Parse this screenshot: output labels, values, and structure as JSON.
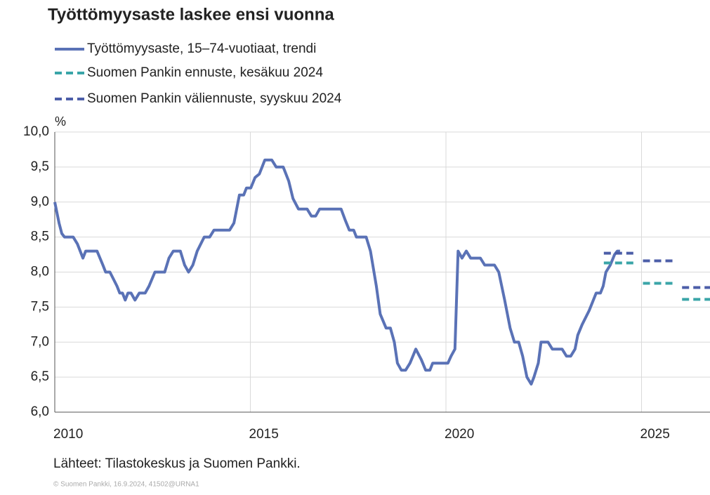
{
  "chart_data": {
    "type": "line",
    "title": "Työttömyysaste laskee ensi vuonna",
    "y_unit": "%",
    "source": "Lähteet: Tilastokeskus ja Suomen Pankki.",
    "footer": "© Suomen Pankki, 16.9.2024, 41502@URNA1",
    "xlim": [
      2010,
      2026.75
    ],
    "xticks": [
      2010,
      2015,
      2020,
      2025
    ],
    "ylim": [
      6,
      10
    ],
    "yticks": [
      {
        "value": 6,
        "label": "6,0"
      },
      {
        "value": 6.5,
        "label": "6,5"
      },
      {
        "value": 7,
        "label": "7,0"
      },
      {
        "value": 7.5,
        "label": "7,5"
      },
      {
        "value": 8,
        "label": "8,0"
      },
      {
        "value": 8.5,
        "label": "8,5"
      },
      {
        "value": 9,
        "label": "9,0"
      },
      {
        "value": 9.5,
        "label": "9,5"
      },
      {
        "value": 10,
        "label": "10,0"
      }
    ],
    "grid": true,
    "series": [
      {
        "name": "Työttömyysaste, 15–74-vuotiaat, trendi",
        "color": "#5a72b6",
        "style": "solid",
        "x": [
          2010.0,
          2010.11,
          2010.18,
          2010.25,
          2010.47,
          2010.58,
          2010.72,
          2010.79,
          2011.08,
          2011.23,
          2011.3,
          2011.41,
          2011.59,
          2011.66,
          2011.73,
          2011.8,
          2011.87,
          2011.95,
          2012.05,
          2012.16,
          2012.31,
          2012.41,
          2012.56,
          2012.81,
          2012.92,
          2013.03,
          2013.21,
          2013.32,
          2013.42,
          2013.53,
          2013.64,
          2013.82,
          2013.96,
          2014.07,
          2014.47,
          2014.58,
          2014.72,
          2014.83,
          2014.9,
          2015.01,
          2015.12,
          2015.23,
          2015.3,
          2015.37,
          2015.55,
          2015.66,
          2015.84,
          2015.98,
          2016.09,
          2016.23,
          2016.45,
          2016.56,
          2016.67,
          2016.77,
          2017.32,
          2017.42,
          2017.53,
          2017.64,
          2017.71,
          2017.96,
          2018.07,
          2018.22,
          2018.32,
          2018.47,
          2018.58,
          2018.68,
          2018.76,
          2018.86,
          2018.97,
          2019.08,
          2019.23,
          2019.37,
          2019.48,
          2019.59,
          2019.66,
          2020.05,
          2020.13,
          2020.23,
          2020.31,
          2020.41,
          2020.52,
          2020.63,
          2020.88,
          2020.99,
          2021.24,
          2021.35,
          2021.5,
          2021.64,
          2021.75,
          2021.86,
          2021.96,
          2022.07,
          2022.18,
          2022.25,
          2022.36,
          2022.43,
          2022.61,
          2022.72,
          2022.97,
          2023.08,
          2023.19,
          2023.3,
          2023.37,
          2023.48,
          2023.66,
          2023.84,
          2023.95,
          2024.02,
          2024.09,
          2024.2,
          2024.31,
          2024.38,
          2024.45
        ],
        "values": [
          9.0,
          8.7,
          8.55,
          8.5,
          8.5,
          8.4,
          8.2,
          8.3,
          8.3,
          8.1,
          8.0,
          8.0,
          7.8,
          7.7,
          7.7,
          7.6,
          7.7,
          7.7,
          7.6,
          7.7,
          7.7,
          7.8,
          8.0,
          8.0,
          8.2,
          8.3,
          8.3,
          8.1,
          8.0,
          8.1,
          8.3,
          8.5,
          8.5,
          8.6,
          8.6,
          8.7,
          9.1,
          9.1,
          9.2,
          9.2,
          9.35,
          9.4,
          9.5,
          9.6,
          9.6,
          9.5,
          9.5,
          9.3,
          9.05,
          8.9,
          8.9,
          8.8,
          8.8,
          8.9,
          8.9,
          8.75,
          8.6,
          8.6,
          8.5,
          8.5,
          8.3,
          7.8,
          7.4,
          7.2,
          7.2,
          7.0,
          6.7,
          6.6,
          6.6,
          6.7,
          6.9,
          6.75,
          6.6,
          6.6,
          6.7,
          6.7,
          6.8,
          6.9,
          8.3,
          8.2,
          8.3,
          8.2,
          8.2,
          8.1,
          8.1,
          8.0,
          7.6,
          7.2,
          7.0,
          7.0,
          6.8,
          6.5,
          6.4,
          6.5,
          6.7,
          7.0,
          7.0,
          6.9,
          6.9,
          6.8,
          6.8,
          6.9,
          7.1,
          7.25,
          7.45,
          7.7,
          7.7,
          7.8,
          8.0,
          8.1,
          8.25,
          8.3,
          8.3
        ]
      },
      {
        "name": "Suomen Pankin ennuste, kesäkuu 2024",
        "color": "#3aa5a8",
        "style": "dashed",
        "x": [
          2024,
          2025,
          2026
        ],
        "values": [
          8.13,
          7.84,
          7.61
        ]
      },
      {
        "name": "Suomen Pankin väliennuste, syyskuu 2024",
        "color": "#4c5ea8",
        "style": "dashed",
        "x": [
          2024,
          2025,
          2026
        ],
        "values": [
          8.27,
          8.16,
          7.78
        ]
      }
    ]
  }
}
